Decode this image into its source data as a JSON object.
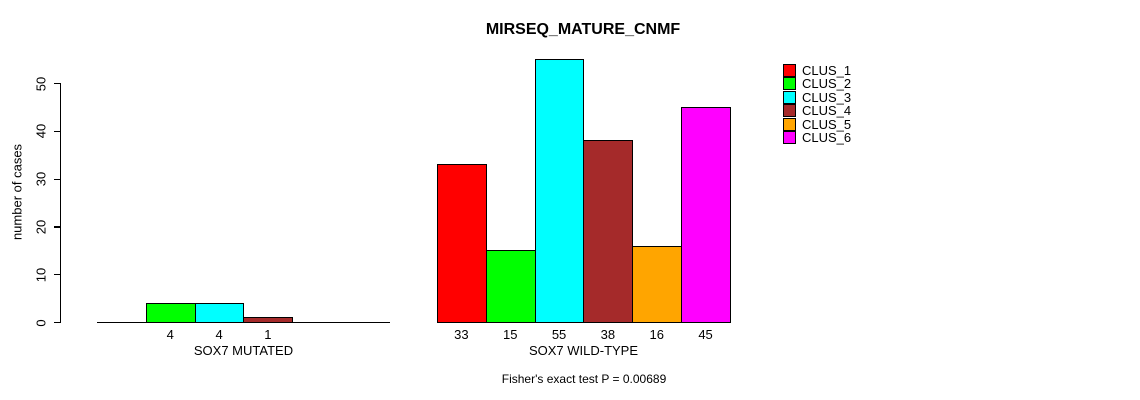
{
  "chart_data": {
    "type": "bar",
    "title": "MIRSEQ_MATURE_CNMF",
    "ylabel": "number of cases",
    "xlabel": "",
    "yticks": [
      0,
      10,
      20,
      30,
      40,
      50
    ],
    "ylim": [
      0,
      55
    ],
    "grid": false,
    "legend_position": "right",
    "series": [
      {
        "name": "CLUS_1",
        "color": "#FF0000"
      },
      {
        "name": "CLUS_2",
        "color": "#00FF00"
      },
      {
        "name": "CLUS_3",
        "color": "#00FFFF"
      },
      {
        "name": "CLUS_4",
        "color": "#A52A2A"
      },
      {
        "name": "CLUS_5",
        "color": "#FFA500"
      },
      {
        "name": "CLUS_6",
        "color": "#FF00FF"
      }
    ],
    "groups": [
      {
        "label": "SOX7 MUTATED",
        "values": [
          0,
          4,
          4,
          1,
          0,
          0
        ]
      },
      {
        "label": "SOX7 WILD-TYPE",
        "values": [
          33,
          15,
          55,
          38,
          16,
          45
        ]
      }
    ],
    "annotation": "Fisher's exact test P = 0.00689"
  }
}
